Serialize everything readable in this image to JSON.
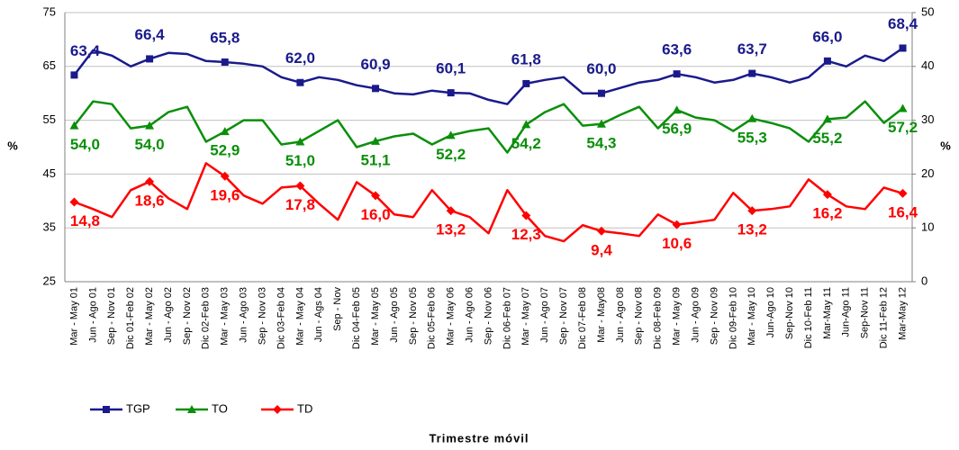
{
  "chart_data": {
    "type": "line",
    "categories": [
      "Mar - May 01",
      "Jun - Ago 01",
      "Sep - Nov 01",
      "Dic 01-Feb 02",
      "Mar - May 02",
      "Jun - Ago 02",
      "Sep - Nov 02",
      "Dic 02-Feb 03",
      "Mar - May 03",
      "Jun - Ago 03",
      "Sep - Nov 03",
      "Dic 03-Feb 04",
      "Mar - May 04",
      "Jun - Ags 04",
      "Sep - Nov",
      "Dic 04-Feb 05",
      "Mar - May 05",
      "Jun - Ago 05",
      "Sep - Nov 05",
      "Dic 05-Feb 06",
      "Mar - May 06",
      "Jun - Ago 06",
      "Sep - Nov 06",
      "Dic 06-Feb 07",
      "Mar - May 07",
      "Jun - Ago 07",
      "Sep - Nov 07",
      "Dic 07-Feb 08",
      "Mar - May08",
      "Jun - Ago 08",
      "Sep - Nov 08",
      "Dic 08-Feb 09",
      "Mar - May 09",
      "Jun - Ago 09",
      "Sep - Nov 09",
      "Dic 09-Feb 10",
      "Mar - May 10",
      "Jun-Ago 10",
      "Sep-Nov 10",
      "Dic 10-Feb 11",
      "Mar-May 11",
      "Jun-Ago 11",
      "Sep-Nov 11",
      "Dic 11-Feb 12",
      "Mar-May 12"
    ],
    "series": [
      {
        "name": "TGP",
        "color": "#1a1a8c",
        "axis": "y",
        "values": [
          63.4,
          68,
          67,
          65,
          66.4,
          67.5,
          67.3,
          66,
          65.8,
          65.5,
          65,
          63,
          62.0,
          63,
          62.5,
          61.5,
          60.9,
          60,
          59.8,
          60.5,
          60.1,
          60,
          58.8,
          58,
          61.8,
          62.5,
          63,
          60,
          60.0,
          61,
          62,
          62.5,
          63.6,
          63,
          62,
          62.5,
          63.7,
          63,
          62,
          63,
          66.0,
          65,
          67,
          66,
          68.4
        ],
        "value_labels": [
          "63,4",
          null,
          null,
          null,
          "66,4",
          null,
          null,
          null,
          "65,8",
          null,
          null,
          null,
          "62,0",
          null,
          null,
          null,
          "60,9",
          null,
          null,
          null,
          "60,1",
          null,
          null,
          null,
          "61,8",
          null,
          null,
          null,
          "60,0",
          null,
          null,
          null,
          "63,6",
          null,
          null,
          null,
          "63,7",
          null,
          null,
          null,
          "66,0",
          null,
          null,
          null,
          "68,4"
        ]
      },
      {
        "name": "TO",
        "color": "#0a8f0a",
        "axis": "y",
        "values": [
          54.0,
          58.5,
          58,
          53.5,
          54.0,
          56.5,
          57.5,
          51,
          52.9,
          55,
          55,
          50.5,
          51.0,
          53,
          55,
          50,
          51.1,
          52,
          52.5,
          50.5,
          52.2,
          53,
          53.5,
          49,
          54.2,
          56.5,
          58,
          54,
          54.3,
          56,
          57.5,
          53.5,
          56.9,
          55.5,
          55,
          53,
          55.3,
          54.5,
          53.5,
          51,
          55.2,
          55.5,
          58.5,
          54.5,
          57.2
        ],
        "value_labels": [
          "54,0",
          null,
          null,
          null,
          "54,0",
          null,
          null,
          null,
          "52,9",
          null,
          null,
          null,
          "51,0",
          null,
          null,
          null,
          "51,1",
          null,
          null,
          null,
          "52,2",
          null,
          null,
          null,
          "54,2",
          null,
          null,
          null,
          "54,3",
          null,
          null,
          null,
          "56,9",
          null,
          null,
          null,
          "55,3",
          null,
          null,
          null,
          "55,2",
          null,
          null,
          null,
          "57,2"
        ]
      },
      {
        "name": "TD",
        "color": "#ff0000",
        "axis": "y2",
        "values": [
          14.8,
          13.5,
          12,
          17,
          18.6,
          15.5,
          13.5,
          22,
          19.6,
          16,
          14.5,
          17.5,
          17.8,
          14.5,
          11.5,
          18.5,
          16.0,
          12.5,
          12,
          17,
          13.2,
          12,
          9,
          17,
          12.3,
          8.5,
          7.5,
          10.5,
          9.4,
          9,
          8.5,
          12.5,
          10.6,
          11,
          11.5,
          16.5,
          13.2,
          13.5,
          14,
          19,
          16.2,
          14,
          13.5,
          17.5,
          16.4
        ],
        "value_labels": [
          "14,8",
          null,
          null,
          null,
          "18,6",
          null,
          null,
          null,
          "19,6",
          null,
          null,
          null,
          "17,8",
          null,
          null,
          null,
          "16,0",
          null,
          null,
          null,
          "13,2",
          null,
          null,
          null,
          "12,3",
          null,
          null,
          null,
          "9,4",
          null,
          null,
          null,
          "10,6",
          null,
          null,
          null,
          "13,2",
          null,
          null,
          null,
          "16,2",
          null,
          null,
          null,
          "16,4"
        ]
      }
    ],
    "ylabel": "%",
    "y2label": "%",
    "xlabel": "Trimestre móvil",
    "ylim": [
      25,
      75
    ],
    "yticks": [
      25,
      35,
      45,
      55,
      65,
      75
    ],
    "y2lim": [
      0,
      50
    ],
    "y2ticks": [
      0,
      10,
      20,
      30,
      40,
      50
    ],
    "grid": true,
    "legend": "bottom-left"
  }
}
